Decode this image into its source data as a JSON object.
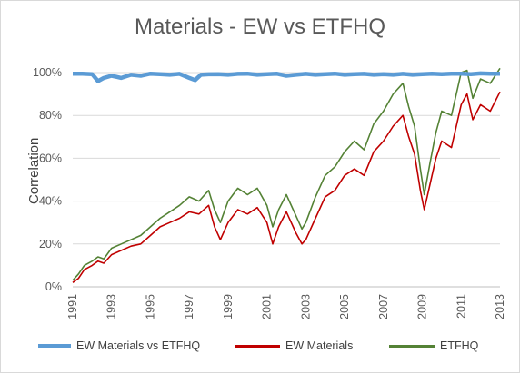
{
  "chart_data": {
    "type": "line",
    "title": "Materials - EW vs ETFHQ",
    "ylabel": "Correlation",
    "xlabel": "",
    "ylim": [
      0,
      1.0
    ],
    "xlim": [
      1991,
      2013
    ],
    "y_ticks": [
      "0%",
      "20%",
      "40%",
      "60%",
      "80%",
      "100%"
    ],
    "x_ticks": [
      "1991",
      "1993",
      "1995",
      "1997",
      "1999",
      "2001",
      "2003",
      "2005",
      "2007",
      "2009",
      "2011",
      "2013"
    ],
    "grid": "horizontal",
    "legend": "bottom",
    "series": [
      {
        "name": "EW Materials vs ETFHQ",
        "color": "#5b9bd5",
        "x": [
          1991.0,
          1991.5,
          1992.0,
          1992.3,
          1992.6,
          1993.0,
          1993.5,
          1994.0,
          1994.5,
          1995.0,
          1995.5,
          1996.0,
          1996.5,
          1997.0,
          1997.3,
          1997.6,
          1998.0,
          1998.5,
          1999.0,
          1999.5,
          2000.0,
          2000.5,
          2001.0,
          2001.5,
          2002.0,
          2002.5,
          2003.0,
          2003.5,
          2004.0,
          2004.5,
          2005.0,
          2005.5,
          2006.0,
          2006.5,
          2007.0,
          2007.5,
          2008.0,
          2008.5,
          2009.0,
          2009.5,
          2010.0,
          2010.5,
          2011.0,
          2011.5,
          2012.0,
          2012.5,
          2013.0
        ],
        "y": [
          0.995,
          0.995,
          0.993,
          0.96,
          0.975,
          0.985,
          0.975,
          0.99,
          0.985,
          0.995,
          0.993,
          0.99,
          0.994,
          0.975,
          0.965,
          0.99,
          0.992,
          0.993,
          0.99,
          0.994,
          0.995,
          0.99,
          0.993,
          0.995,
          0.985,
          0.99,
          0.994,
          0.99,
          0.993,
          0.995,
          0.99,
          0.993,
          0.994,
          0.99,
          0.993,
          0.99,
          0.994,
          0.99,
          0.993,
          0.995,
          0.993,
          0.995,
          0.995,
          0.993,
          0.996,
          0.995,
          0.995
        ]
      },
      {
        "name": "EW Materials",
        "color": "#c00000",
        "x": [
          1991.0,
          1991.3,
          1991.6,
          1992.0,
          1992.3,
          1992.6,
          1993.0,
          1993.5,
          1994.0,
          1994.5,
          1995.0,
          1995.5,
          1996.0,
          1996.5,
          1997.0,
          1997.5,
          1998.0,
          1998.3,
          1998.6,
          1999.0,
          1999.5,
          2000.0,
          2000.5,
          2001.0,
          2001.3,
          2001.6,
          2002.0,
          2002.5,
          2002.8,
          2003.0,
          2003.5,
          2004.0,
          2004.5,
          2005.0,
          2005.5,
          2006.0,
          2006.5,
          2007.0,
          2007.5,
          2008.0,
          2008.3,
          2008.6,
          2008.9,
          2009.1,
          2009.4,
          2009.7,
          2010.0,
          2010.5,
          2011.0,
          2011.3,
          2011.6,
          2012.0,
          2012.5,
          2013.0
        ],
        "y": [
          0.02,
          0.04,
          0.08,
          0.1,
          0.12,
          0.11,
          0.15,
          0.17,
          0.19,
          0.2,
          0.24,
          0.28,
          0.3,
          0.32,
          0.35,
          0.34,
          0.38,
          0.28,
          0.22,
          0.3,
          0.36,
          0.34,
          0.37,
          0.3,
          0.2,
          0.28,
          0.35,
          0.25,
          0.2,
          0.22,
          0.32,
          0.42,
          0.45,
          0.52,
          0.55,
          0.52,
          0.63,
          0.68,
          0.75,
          0.8,
          0.7,
          0.62,
          0.45,
          0.36,
          0.48,
          0.6,
          0.68,
          0.65,
          0.85,
          0.9,
          0.78,
          0.85,
          0.82,
          0.91
        ]
      },
      {
        "name": "ETFHQ",
        "color": "#548235",
        "x": [
          1991.0,
          1991.3,
          1991.6,
          1992.0,
          1992.3,
          1992.6,
          1993.0,
          1993.5,
          1994.0,
          1994.5,
          1995.0,
          1995.5,
          1996.0,
          1996.5,
          1997.0,
          1997.5,
          1998.0,
          1998.3,
          1998.6,
          1999.0,
          1999.5,
          2000.0,
          2000.5,
          2001.0,
          2001.3,
          2001.6,
          2002.0,
          2002.5,
          2002.8,
          2003.0,
          2003.5,
          2004.0,
          2004.5,
          2005.0,
          2005.5,
          2006.0,
          2006.5,
          2007.0,
          2007.5,
          2008.0,
          2008.3,
          2008.6,
          2008.9,
          2009.1,
          2009.4,
          2009.7,
          2010.0,
          2010.5,
          2011.0,
          2011.3,
          2011.6,
          2012.0,
          2012.5,
          2013.0
        ],
        "y": [
          0.03,
          0.06,
          0.1,
          0.12,
          0.14,
          0.13,
          0.18,
          0.2,
          0.22,
          0.24,
          0.28,
          0.32,
          0.35,
          0.38,
          0.42,
          0.4,
          0.45,
          0.36,
          0.3,
          0.4,
          0.46,
          0.43,
          0.46,
          0.38,
          0.28,
          0.36,
          0.43,
          0.33,
          0.27,
          0.3,
          0.42,
          0.52,
          0.56,
          0.63,
          0.68,
          0.64,
          0.76,
          0.82,
          0.9,
          0.95,
          0.84,
          0.75,
          0.55,
          0.43,
          0.58,
          0.72,
          0.82,
          0.8,
          1.0,
          1.01,
          0.88,
          0.97,
          0.95,
          1.02
        ]
      }
    ]
  }
}
